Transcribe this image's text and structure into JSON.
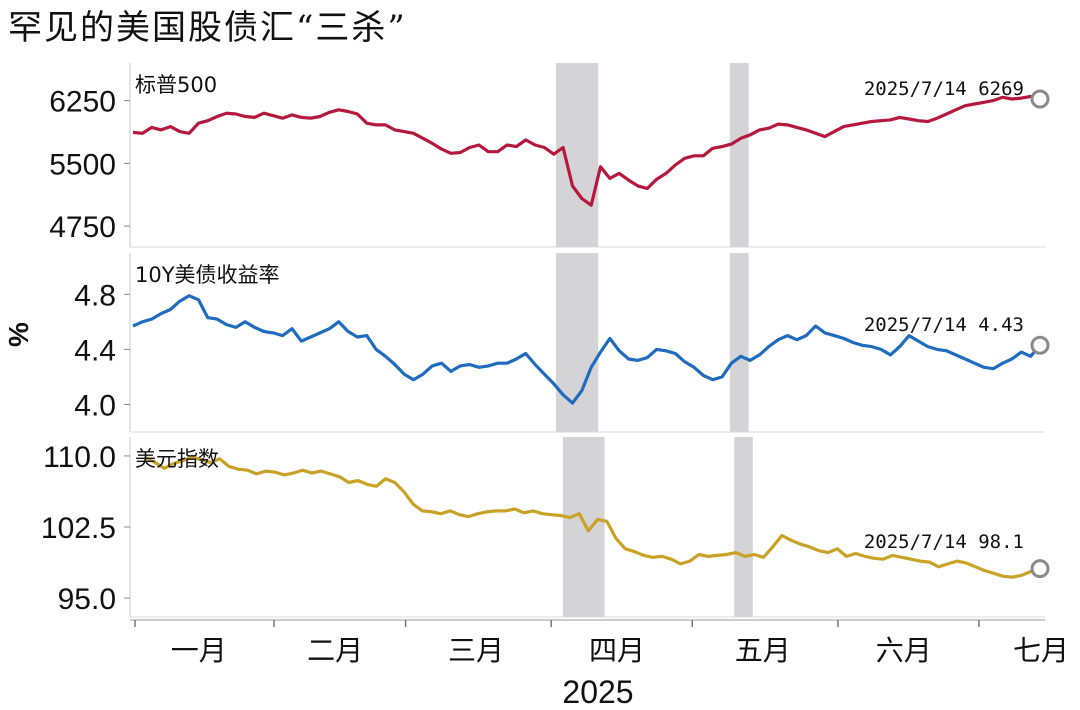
{
  "title": "罕见的美国股债汇“三杀”",
  "chart_data": {
    "type": "line",
    "xlabel": "2025",
    "x_tick_labels": [
      "一月",
      "二月",
      "三月",
      "四月",
      "五月",
      "六月",
      "七月"
    ],
    "date_range": [
      "2025-01-02",
      "2025-07-14"
    ],
    "shaded_periods": [
      [
        "2025-04-02",
        "2025-04-11"
      ],
      [
        "2025-05-09",
        "2025-05-13"
      ]
    ],
    "panels": [
      {
        "name": "标普500",
        "ylabel": "",
        "ylim": [
          4500,
          6700
        ],
        "yticks": [
          4750,
          5500,
          6250
        ],
        "ytick_labels": [
          "4750",
          "5500",
          "6250"
        ],
        "color": "#b5183c",
        "annotation": "2025/7/14  6269",
        "values": [
          5870,
          5860,
          5930,
          5900,
          5940,
          5880,
          5860,
          5980,
          6010,
          6060,
          6100,
          6090,
          6060,
          6050,
          6100,
          6070,
          6040,
          6080,
          6050,
          6040,
          6060,
          6110,
          6140,
          6120,
          6090,
          5980,
          5960,
          5960,
          5900,
          5880,
          5860,
          5800,
          5740,
          5670,
          5620,
          5630,
          5690,
          5720,
          5640,
          5640,
          5720,
          5700,
          5780,
          5720,
          5690,
          5610,
          5690,
          5230,
          5080,
          5000,
          5460,
          5320,
          5380,
          5300,
          5230,
          5200,
          5310,
          5380,
          5480,
          5560,
          5590,
          5590,
          5680,
          5700,
          5730,
          5800,
          5840,
          5900,
          5920,
          5970,
          5960,
          5930,
          5900,
          5860,
          5820,
          5880,
          5940,
          5960,
          5980,
          6000,
          6010,
          6020,
          6050,
          6030,
          6010,
          6000,
          6040,
          6090,
          6140,
          6190,
          6210,
          6230,
          6250,
          6290,
          6270,
          6280,
          6300,
          6269
        ]
      },
      {
        "name": "10Y美债收益率",
        "ylabel": "%",
        "ylim": [
          3.8,
          5.1
        ],
        "yticks": [
          4.0,
          4.4,
          4.8
        ],
        "ytick_labels": [
          "4.0",
          "4.4",
          "4.8"
        ],
        "color": "#1f6bbd",
        "annotation": "2025/7/14  4.43",
        "values": [
          4.57,
          4.6,
          4.62,
          4.66,
          4.69,
          4.75,
          4.79,
          4.76,
          4.63,
          4.62,
          4.58,
          4.56,
          4.6,
          4.56,
          4.53,
          4.52,
          4.5,
          4.55,
          4.46,
          4.49,
          4.52,
          4.55,
          4.6,
          4.53,
          4.49,
          4.5,
          4.4,
          4.35,
          4.29,
          4.22,
          4.18,
          4.22,
          4.28,
          4.3,
          4.24,
          4.28,
          4.29,
          4.27,
          4.28,
          4.3,
          4.3,
          4.33,
          4.37,
          4.29,
          4.22,
          4.15,
          4.07,
          4.01,
          4.1,
          4.27,
          4.38,
          4.48,
          4.39,
          4.33,
          4.32,
          4.34,
          4.4,
          4.39,
          4.37,
          4.31,
          4.27,
          4.21,
          4.18,
          4.2,
          4.3,
          4.35,
          4.32,
          4.36,
          4.42,
          4.47,
          4.5,
          4.47,
          4.5,
          4.57,
          4.52,
          4.5,
          4.48,
          4.45,
          4.43,
          4.42,
          4.4,
          4.36,
          4.42,
          4.5,
          4.46,
          4.42,
          4.4,
          4.39,
          4.36,
          4.33,
          4.3,
          4.27,
          4.26,
          4.3,
          4.33,
          4.38,
          4.35,
          4.43
        ]
      },
      {
        "name": "美元指数",
        "ylabel": "",
        "ylim": [
          93,
          112
        ],
        "yticks": [
          95.0,
          102.5,
          110.0
        ],
        "ytick_labels": [
          "95.0",
          "102.5",
          "110.0"
        ],
        "color": "#c9a227",
        "annotation": "2025/7/14  98.1",
        "values": [
          109.8,
          109.3,
          108.7,
          109.2,
          109.5,
          109.9,
          109.6,
          109.3,
          109.7,
          108.9,
          108.6,
          108.5,
          108.1,
          108.4,
          108.3,
          108.0,
          108.2,
          108.5,
          108.2,
          108.4,
          108.1,
          107.8,
          107.2,
          107.4,
          107.0,
          106.8,
          107.6,
          107.2,
          106.2,
          104.9,
          104.2,
          104.1,
          103.9,
          104.2,
          103.8,
          103.6,
          103.9,
          104.1,
          104.2,
          104.2,
          104.4,
          104.0,
          104.2,
          103.9,
          103.8,
          103.7,
          103.5,
          103.9,
          102.1,
          103.3,
          103.1,
          101.3,
          100.2,
          99.9,
          99.5,
          99.3,
          99.4,
          99.1,
          98.6,
          98.9,
          99.6,
          99.4,
          99.5,
          99.6,
          99.8,
          99.4,
          99.6,
          99.3,
          100.4,
          101.6,
          101.1,
          100.7,
          100.4,
          100.0,
          99.8,
          100.2,
          99.4,
          99.7,
          99.4,
          99.2,
          99.1,
          99.5,
          99.3,
          99.1,
          98.9,
          98.8,
          98.3,
          98.6,
          98.9,
          98.7,
          98.3,
          97.9,
          97.6,
          97.3,
          97.2,
          97.4,
          97.8,
          98.1
        ]
      }
    ]
  }
}
